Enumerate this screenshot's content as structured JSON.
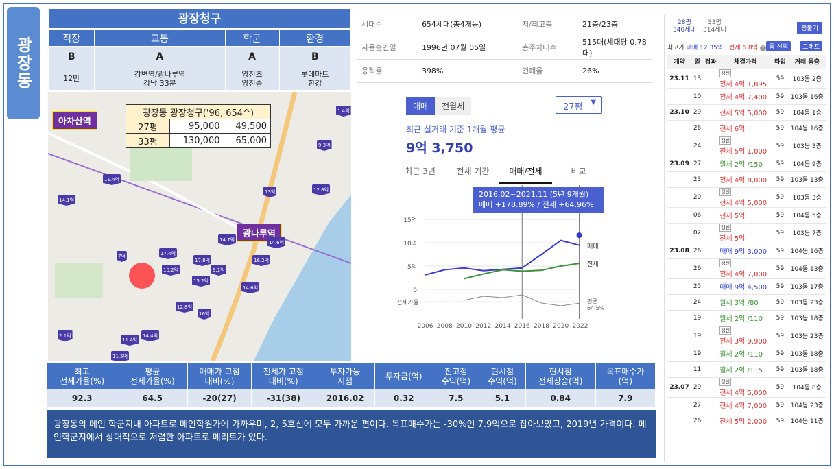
{
  "side_label": "광장동",
  "title": "광장청구",
  "grades": {
    "headers": [
      "직장",
      "교통",
      "학군",
      "환경"
    ],
    "values": [
      "B",
      "A",
      "A",
      "B"
    ],
    "details": [
      "12만",
      "강변역/광나루역\n강남 33분",
      "양진초\n양진중",
      "롯데마트\n한강"
    ]
  },
  "map": {
    "labels": {
      "achasan": "아차산역",
      "gwangnaru": "광나루역"
    },
    "price_table": {
      "title": "광장동 광장청구('96, 654^)",
      "rows": [
        [
          "27평",
          "95,000",
          "49,500"
        ],
        [
          "33평",
          "130,000",
          "65,000"
        ]
      ]
    },
    "pins": [
      "9.3억",
      "11.4억",
      "14.1억",
      "13억",
      "12.8억",
      "14.7억",
      "14.6억",
      "17.4억",
      "17.8억",
      "16.2억",
      "9.1억",
      "15.2억",
      "10.2억",
      "7억",
      "14.6억",
      "12.8억",
      "16억",
      "11.4억",
      "14.4억",
      "11.5억",
      "2.1억",
      "1.4억"
    ]
  },
  "info": {
    "rows": [
      {
        "k1": "세대수",
        "v1": "654세대(총4개동)",
        "k2": "저/최고층",
        "v2": "21층/23층"
      },
      {
        "k1": "사용승인일",
        "v1": "1996년 07월 05일",
        "k2": "총주차대수",
        "v2": "515대(세대당 0.78대)"
      },
      {
        "k1": "용적률",
        "v1": "398%",
        "k2": "건폐율",
        "v2": "26%"
      }
    ]
  },
  "tabs": {
    "sale": "매매",
    "rent": "전월세"
  },
  "size_select": "27평",
  "avg": {
    "caption": "최근 실거래 기준 1개월 평균",
    "value": "9억 3,750"
  },
  "chart_tabs": [
    "최근 3년",
    "전체 기간",
    "매매/전세",
    "비교"
  ],
  "tooltip": {
    "line1": "2016.02~2021.11 (5년 9개월)",
    "line2": "매매 +178.89%  /  전세 +64.96%"
  },
  "chart_data": {
    "type": "line",
    "x": [
      2006,
      2008,
      2010,
      2012,
      2014,
      2016,
      2018,
      2020,
      2022
    ],
    "xlabels": [
      "2006",
      "2008",
      "2010",
      "2012",
      "2014",
      "2016",
      "2018",
      "2020",
      "2022"
    ],
    "yticks": [
      "15억",
      "10억",
      "5억",
      "0"
    ],
    "ylim": [
      0,
      15
    ],
    "series": [
      {
        "name": "매매",
        "values": [
          3.1,
          4.2,
          4.6,
          4.0,
          4.3,
          4.6,
          7.5,
          10.5,
          9.4
        ]
      },
      {
        "name": "전세",
        "values": [
          null,
          null,
          2.3,
          3.3,
          4.2,
          3.9,
          4.1,
          5.0,
          5.6
        ]
      }
    ],
    "ratio_label": "전세가율",
    "ratio_last": "평균\n64.5%"
  },
  "bottom": {
    "headers": [
      "최고\n전세가율(%)",
      "평균\n전세가율(%)",
      "매매가 고점\n대비(%)",
      "전세가 고점\n대비(%)",
      "투자가능\n시점",
      "투자금(억)",
      "전고점\n수익(억)",
      "현시점\n수익(억)",
      "현시점\n전세상승(억)",
      "목표매수가\n(억)"
    ],
    "values": [
      "92.3",
      "64.5",
      "-20(27)",
      "-31(38)",
      "2016.02",
      "0.32",
      "7.5",
      "5.1",
      "0.84",
      "7.9"
    ]
  },
  "note": "광장동의 메인 학군지내 아파트로 메인학원가에 가까우며, 2, 5호선에 모두 가까운 편이다. 목표매수가는 -30%인 7.9억으로 잡아보았고, 2019년 가격이다. 메인학군지에서 상대적으로 저렴한 아파트로 메리트가 있다.",
  "right": {
    "tabs": [
      "28평\n340세대",
      "33평\n314세대"
    ],
    "button": "평불기",
    "max_label": "최고가",
    "max_sale": "매매 12.35억",
    "max_jeon": "전세 6.8억",
    "sel": "동 선택",
    "graph": "그래프",
    "cols": [
      "계약",
      "일",
      "경과",
      "체결가격",
      "타입",
      "거래 동층"
    ],
    "rows": [
      [
        "23.11",
        "13",
        "",
        "갱신 전세 4억 1,895",
        "59",
        "103동 2층"
      ],
      [
        "",
        "10",
        "",
        "전세 4억 7,400",
        "59",
        "103동 16층"
      ],
      [
        "23.10",
        "29",
        "",
        "전세 5억 5,000",
        "59",
        "104동 1층"
      ],
      [
        "",
        "26",
        "",
        "전세 6억",
        "59",
        "104동 16층"
      ],
      [
        "",
        "24",
        "",
        "갱신 전세 5억 1,000",
        "59",
        "103동 3층"
      ],
      [
        "23.09",
        "27",
        "",
        "월세 2억 /150",
        "59",
        "104동 9층"
      ],
      [
        "",
        "23",
        "",
        "전세 4억 8,000",
        "59",
        "103동 13층"
      ],
      [
        "",
        "20",
        "",
        "갱신 전세 4억 5,000",
        "59",
        "103동 3층"
      ],
      [
        "",
        "06",
        "",
        "전세 5억",
        "59",
        "104동 5층"
      ],
      [
        "",
        "02",
        "",
        "갱신 전세 5억",
        "59",
        "103동 7층"
      ],
      [
        "23.08",
        "26",
        "",
        "매매 9억 3,000",
        "59",
        "104동 16층"
      ],
      [
        "",
        "26",
        "",
        "갱신 전세 4억 7,000",
        "59",
        "104동 13층"
      ],
      [
        "",
        "25",
        "",
        "매매 9억 4,500",
        "59",
        "103동 17층"
      ],
      [
        "",
        "24",
        "",
        "월세 3억 /80",
        "59",
        "103동 23층"
      ],
      [
        "",
        "19",
        "",
        "월세 2억 /110",
        "59",
        "103동 18층"
      ],
      [
        "",
        "19",
        "",
        "갱신 전세 3억 9,900",
        "59",
        "103동 23층"
      ],
      [
        "",
        "19",
        "",
        "월세 2억 /110",
        "59",
        "103동 18층"
      ],
      [
        "",
        "11",
        "",
        "월세 2억 /115",
        "59",
        "103동 18층"
      ],
      [
        "23.07",
        "29",
        "",
        "갱신 전세 4억 5,000",
        "59",
        "104동 8층"
      ],
      [
        "",
        "27",
        "",
        "전세 4억 7,000",
        "59",
        "104동 23층"
      ],
      [
        "",
        "26",
        "",
        "전세 5억 2,000",
        "59",
        "104동 11층"
      ]
    ]
  }
}
